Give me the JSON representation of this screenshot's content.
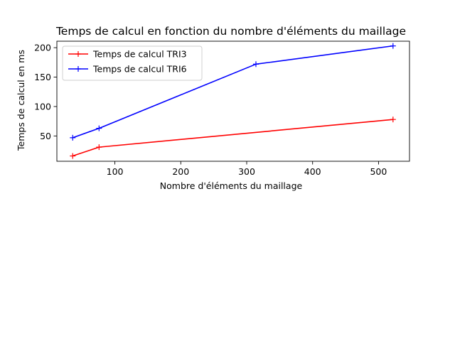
{
  "chart_data": {
    "type": "line",
    "title": "Temps de calcul en fonction du nombre d'éléments du maillage",
    "xlabel": "Nombre d'éléments du maillage",
    "ylabel": "Temps de calcul en ms",
    "xlim": [
      12,
      547
    ],
    "ylim": [
      7,
      211
    ],
    "xticks": [
      100,
      200,
      300,
      400,
      500
    ],
    "yticks": [
      50,
      100,
      150,
      200
    ],
    "grid": false,
    "legend_position": "top-left",
    "series": [
      {
        "name": "Temps de calcul TRI3",
        "color": "#ff0000",
        "marker": "+",
        "x": [
          36,
          76,
          522
        ],
        "y": [
          16,
          31,
          78
        ]
      },
      {
        "name": "Temps de calcul TRI6",
        "color": "#0000ff",
        "marker": "+",
        "x": [
          36,
          76,
          314,
          522
        ],
        "y": [
          47,
          63,
          172,
          203
        ]
      }
    ]
  }
}
